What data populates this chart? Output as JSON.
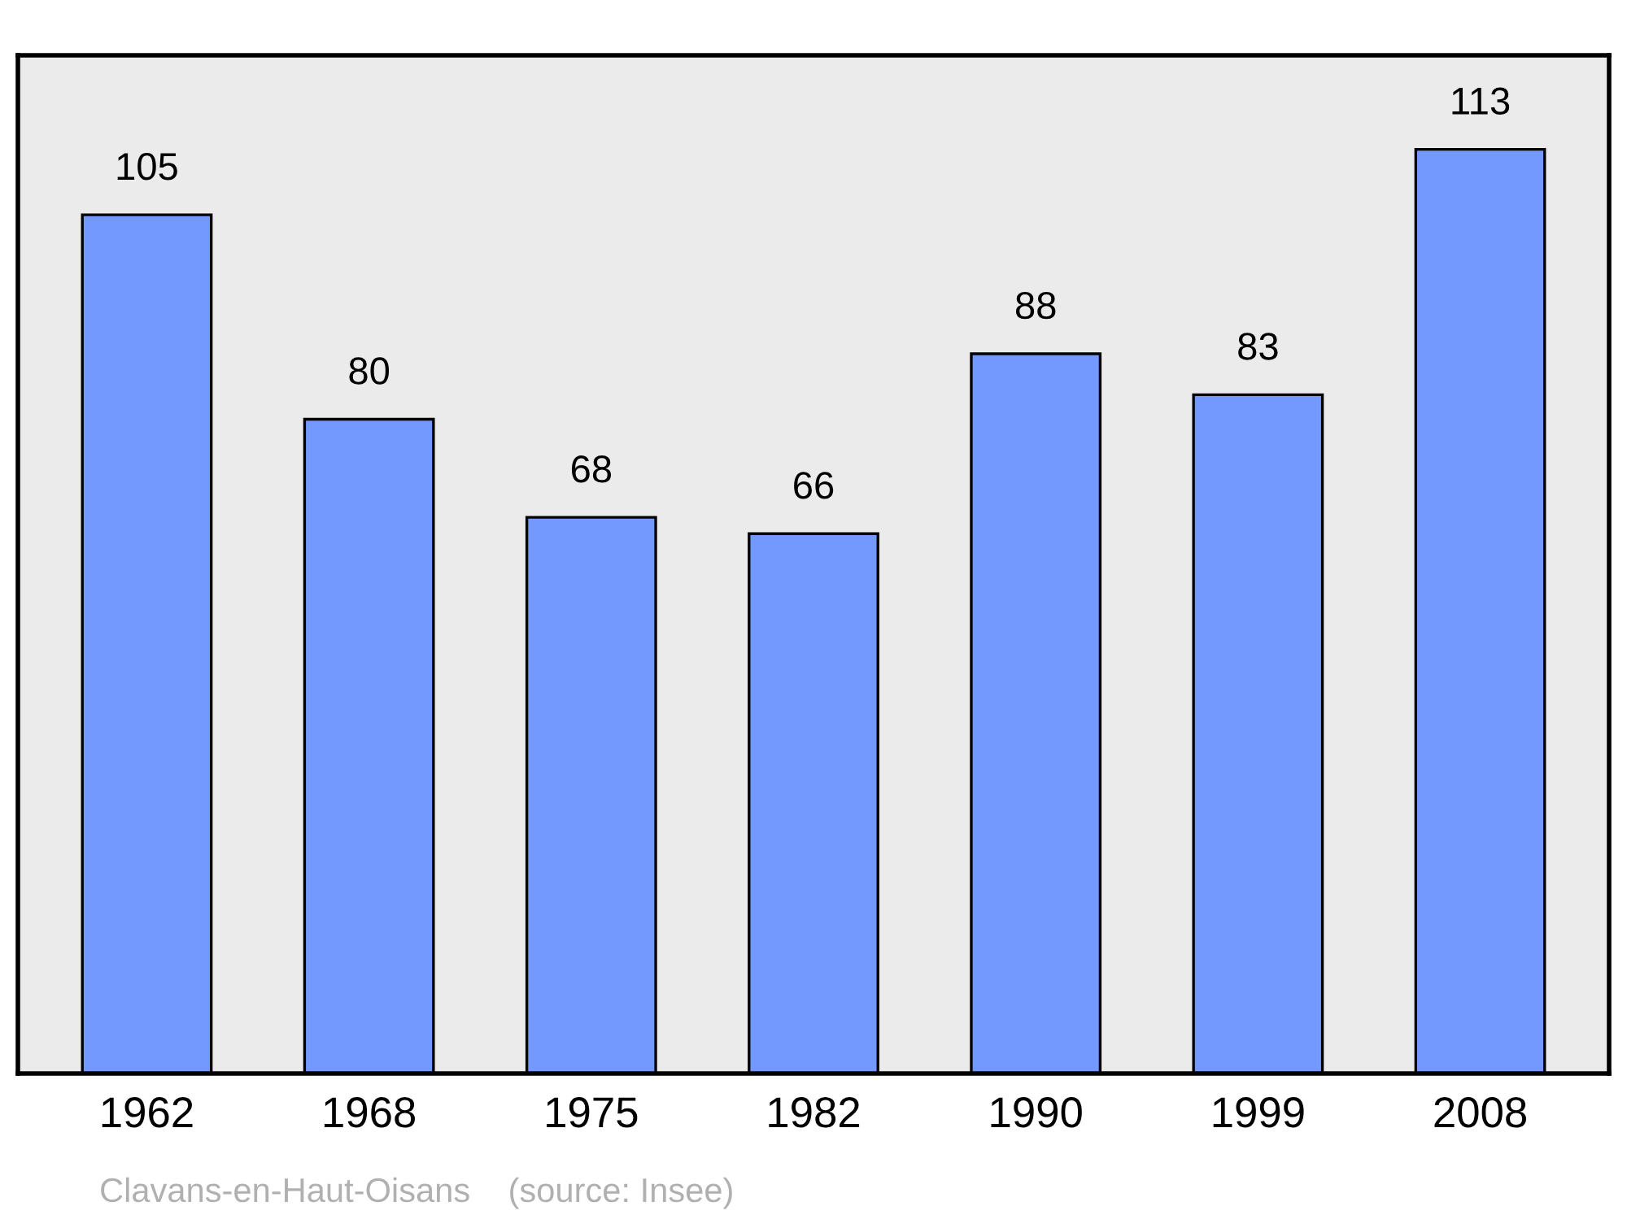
{
  "chart_data": {
    "type": "bar",
    "categories": [
      "1962",
      "1968",
      "1975",
      "1982",
      "1990",
      "1999",
      "2008"
    ],
    "values": [
      105,
      80,
      68,
      66,
      88,
      83,
      113
    ],
    "color": "#7399ff",
    "ylim": [
      0,
      124.5
    ],
    "tick_labels": "x",
    "data_labels": true,
    "annotations": [
      "Clavans-en-Haut-Oisans    (source: Insee)"
    ]
  }
}
